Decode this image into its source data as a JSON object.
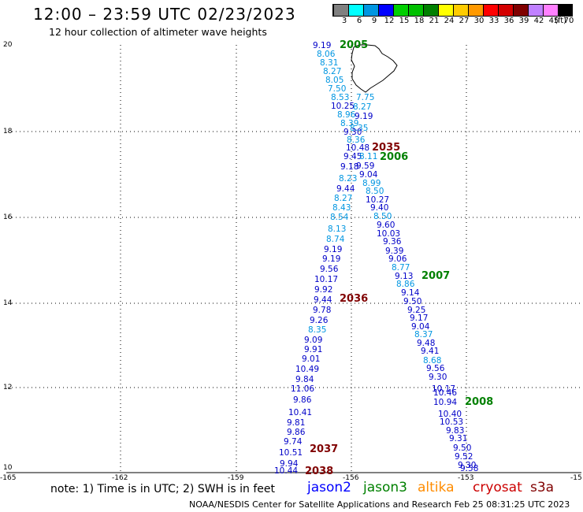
{
  "header": {
    "title": "12:00 – 23:59 UTC 02/23/2023",
    "subtitle": "12 hour collection of altimeter wave heights"
  },
  "scale": {
    "labels": [
      "3",
      "6",
      "9",
      "12",
      "15",
      "18",
      "21",
      "24",
      "27",
      "30",
      "33",
      "36",
      "39",
      "42",
      "45",
      "70"
    ],
    "unit": "(ft)",
    "colors": [
      "#808080",
      "#00ffff",
      "#0096e1",
      "#0000ff",
      "#00d000",
      "#00c000",
      "#008000",
      "#ffff00",
      "#ffcc00",
      "#ff9900",
      "#ff0000",
      "#d40000",
      "#800000",
      "#c080ff",
      "#ff80ff",
      "#000000"
    ]
  },
  "axes": {
    "x_labels": [
      "-165",
      "-162",
      "-159",
      "-156",
      "-153",
      "-15"
    ],
    "y_labels": [
      "20",
      "18",
      "16",
      "14",
      "12",
      "10"
    ]
  },
  "observations": [
    {
      "t": "9.19",
      "c": "#0000c8"
    },
    {
      "t": "8.06",
      "c": "#0096e1"
    },
    {
      "t": "8.31",
      "c": "#0096e1"
    },
    {
      "t": "8.27",
      "c": "#0096e1"
    },
    {
      "t": "8.05",
      "c": "#0096e1"
    },
    {
      "t": "7.50",
      "c": "#0096e1"
    },
    {
      "t": "8.53",
      "c": "#0096e1"
    },
    {
      "t": "7.75",
      "c": "#0096e1"
    },
    {
      "t": "10.25",
      "c": "#0000c8"
    },
    {
      "t": "8.27",
      "c": "#0096e1"
    },
    {
      "t": "8.96",
      "c": "#0096e1"
    },
    {
      "t": "9.19",
      "c": "#0000c8"
    },
    {
      "t": "8.39",
      "c": "#0096e1"
    },
    {
      "t": "8.35",
      "c": "#0096e1"
    },
    {
      "t": "9.30",
      "c": "#0000c8"
    },
    {
      "t": "8.36",
      "c": "#0096e1"
    },
    {
      "t": "10.48",
      "c": "#0000c8"
    },
    {
      "t": "9.45",
      "c": "#0000c8"
    },
    {
      "t": "8.11",
      "c": "#0096e1"
    },
    {
      "t": "9.18",
      "c": "#0000c8"
    },
    {
      "t": "9.59",
      "c": "#0000c8"
    },
    {
      "t": "9.04",
      "c": "#0000c8"
    },
    {
      "t": "8.23",
      "c": "#0096e1"
    },
    {
      "t": "8.99",
      "c": "#0096e1"
    },
    {
      "t": "9.44",
      "c": "#0000c8"
    },
    {
      "t": "8.50",
      "c": "#0096e1"
    },
    {
      "t": "8.27",
      "c": "#0096e1"
    },
    {
      "t": "10.27",
      "c": "#0000c8"
    },
    {
      "t": "8.43",
      "c": "#0096e1"
    },
    {
      "t": "9.40",
      "c": "#0000c8"
    },
    {
      "t": "8.54",
      "c": "#0096e1"
    },
    {
      "t": "8.50",
      "c": "#0096e1"
    },
    {
      "t": "9.60",
      "c": "#0000c8"
    },
    {
      "t": "8.13",
      "c": "#0096e1"
    },
    {
      "t": "10.03",
      "c": "#0000c8"
    },
    {
      "t": "8.74",
      "c": "#0096e1"
    },
    {
      "t": "9.36",
      "c": "#0000c8"
    },
    {
      "t": "9.19",
      "c": "#0000c8"
    },
    {
      "t": "9.39",
      "c": "#0000c8"
    },
    {
      "t": "9.19",
      "c": "#0000c8"
    },
    {
      "t": "9.06",
      "c": "#0000c8"
    },
    {
      "t": "9.56",
      "c": "#0000c8"
    },
    {
      "t": "8.77",
      "c": "#0096e1"
    },
    {
      "t": "10.17",
      "c": "#0000c8"
    },
    {
      "t": "9.13",
      "c": "#0000c8"
    },
    {
      "t": "8.86",
      "c": "#0096e1"
    },
    {
      "t": "9.92",
      "c": "#0000c8"
    },
    {
      "t": "9.14",
      "c": "#0000c8"
    },
    {
      "t": "9.44",
      "c": "#0000c8"
    },
    {
      "t": "9.50",
      "c": "#0000c8"
    },
    {
      "t": "9.78",
      "c": "#0000c8"
    },
    {
      "t": "9.25",
      "c": "#0000c8"
    },
    {
      "t": "9.26",
      "c": "#0000c8"
    },
    {
      "t": "9.17",
      "c": "#0000c8"
    },
    {
      "t": "9.04",
      "c": "#0000c8"
    },
    {
      "t": "8.35",
      "c": "#0096e1"
    },
    {
      "t": "8.37",
      "c": "#0096e1"
    },
    {
      "t": "9.09",
      "c": "#0000c8"
    },
    {
      "t": "9.48",
      "c": "#0000c8"
    },
    {
      "t": "9.91",
      "c": "#0000c8"
    },
    {
      "t": "9.41",
      "c": "#0000c8"
    },
    {
      "t": "9.01",
      "c": "#0000c8"
    },
    {
      "t": "8.68",
      "c": "#0096e1"
    },
    {
      "t": "10.49",
      "c": "#0000c8"
    },
    {
      "t": "9.56",
      "c": "#0000c8"
    },
    {
      "t": "9.84",
      "c": "#0000c8"
    },
    {
      "t": "9.30",
      "c": "#0000c8"
    },
    {
      "t": "11.06",
      "c": "#0000c8"
    },
    {
      "t": "10.17",
      "c": "#0000c8"
    },
    {
      "t": "9.86",
      "c": "#0000c8"
    },
    {
      "t": "10.46",
      "c": "#0000c8"
    },
    {
      "t": "10.94",
      "c": "#0000c8"
    },
    {
      "t": "10.41",
      "c": "#0000c8"
    },
    {
      "t": "10.40",
      "c": "#0000c8"
    },
    {
      "t": "9.81",
      "c": "#0000c8"
    },
    {
      "t": "10.53",
      "c": "#0000c8"
    },
    {
      "t": "9.86",
      "c": "#0000c8"
    },
    {
      "t": "9.83",
      "c": "#0000c8"
    },
    {
      "t": "9.74",
      "c": "#0000c8"
    },
    {
      "t": "9.31",
      "c": "#0000c8"
    },
    {
      "t": "10.51",
      "c": "#0000c8"
    },
    {
      "t": "9.50",
      "c": "#0000c8"
    },
    {
      "t": "9.52",
      "c": "#0000c8"
    },
    {
      "t": "9.94",
      "c": "#0000c8"
    },
    {
      "t": "9.30",
      "c": "#0000c8"
    },
    {
      "t": "10.44",
      "c": "#0000c8"
    },
    {
      "t": "9.58",
      "c": "#0000c8"
    }
  ],
  "pass_times": [
    {
      "t": "2005",
      "c": "#008000"
    },
    {
      "t": "2035",
      "c": "#800000"
    },
    {
      "t": "2006",
      "c": "#008000"
    },
    {
      "t": "2007",
      "c": "#008000"
    },
    {
      "t": "2036",
      "c": "#800000"
    },
    {
      "t": "2008",
      "c": "#008000"
    },
    {
      "t": "2037",
      "c": "#800000"
    },
    {
      "t": "2038",
      "c": "#800000"
    }
  ],
  "footer": {
    "note": "note:  1) Time is in UTC;  2) SWH is in feet",
    "missions": [
      {
        "label": "jason2",
        "color": "#0000ff"
      },
      {
        "label": "jason3",
        "color": "#008000"
      },
      {
        "label": "altika",
        "color": "#ff8c00"
      },
      {
        "label": "cryosat",
        "color": "#cc0000"
      },
      {
        "label": "s3a",
        "color": "#800000"
      }
    ],
    "credit": "NOAA/NESDIS Center for Satellite Applications and Research     Feb 25 08:31:25 UTC 2023"
  }
}
